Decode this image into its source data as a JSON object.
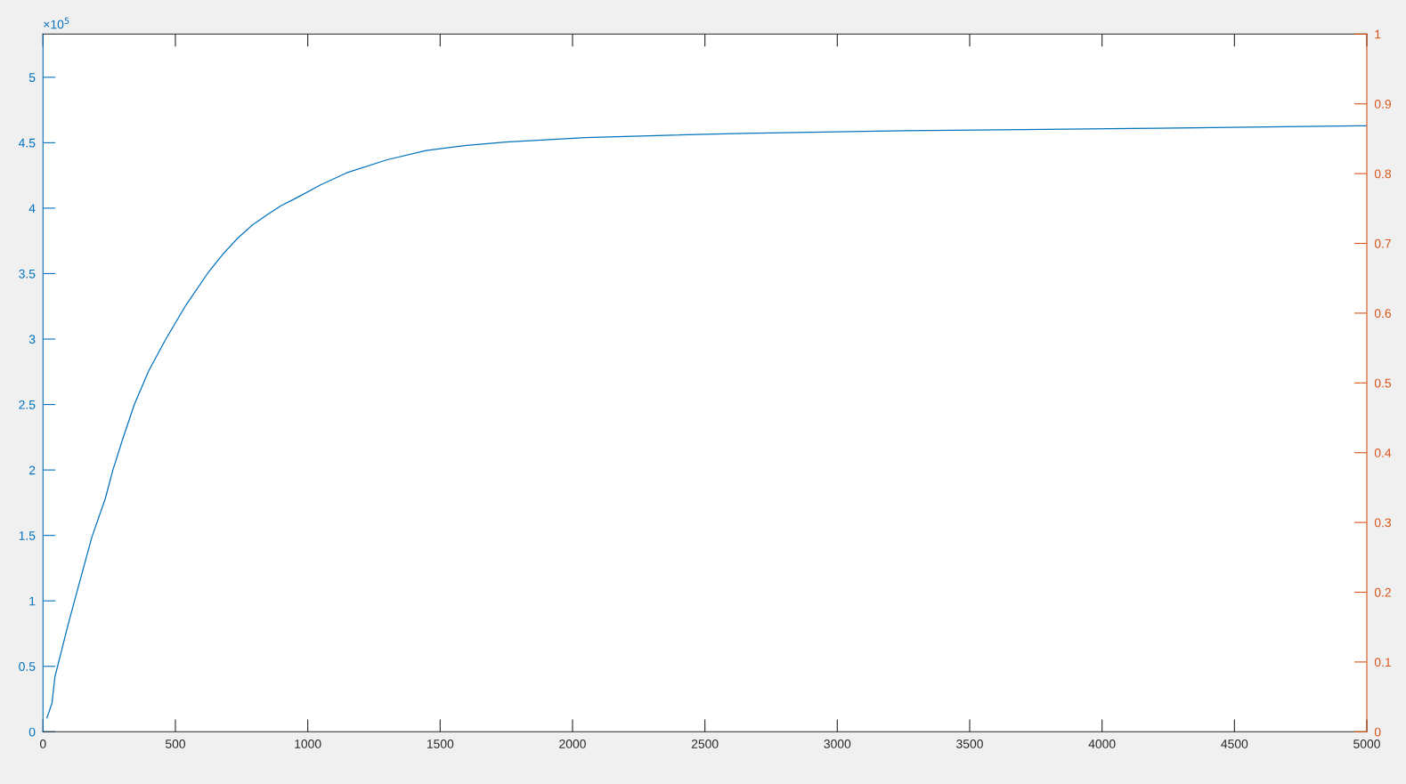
{
  "chart_data": {
    "type": "line",
    "x": [
      15,
      34,
      45,
      70,
      95,
      135,
      185,
      235,
      264,
      300,
      345,
      400,
      464,
      540,
      621,
      680,
      735,
      790,
      847,
      900,
      959,
      1050,
      1147,
      1300,
      1447,
      1600,
      1748,
      2048,
      2348,
      2648,
      3200,
      3700,
      4210,
      5000
    ],
    "series": [
      {
        "color": "#0072bd",
        "values": [
          0.106,
          0.22,
          0.42,
          0.62,
          0.82,
          1.12,
          1.49,
          1.78,
          2.0,
          2.23,
          2.5,
          2.76,
          3.0,
          3.26,
          3.5,
          3.65,
          3.77,
          3.87,
          3.95,
          4.02,
          4.08,
          4.18,
          4.27,
          4.37,
          4.44,
          4.48,
          4.505,
          4.54,
          4.557,
          4.572,
          4.59,
          4.6,
          4.611,
          4.63
        ]
      }
    ],
    "xlim": [
      0,
      5000
    ],
    "xticks": [
      0,
      500,
      1000,
      1500,
      2000,
      2500,
      3000,
      3500,
      4000,
      4500,
      5000
    ],
    "ylim": [
      0,
      5.33
    ],
    "yticks": [
      0,
      0.5,
      1,
      1.5,
      2,
      2.5,
      3,
      3.5,
      4,
      4.5,
      5
    ],
    "y2lim": [
      0,
      1
    ],
    "y2ticks": [
      0,
      0.1,
      0.2,
      0.3,
      0.4,
      0.5,
      0.6,
      0.7,
      0.8,
      0.9,
      1
    ],
    "annotations": [
      "×10$^{5}$"
    ],
    "grid": false,
    "marker": "none",
    "line_style": "solid"
  }
}
